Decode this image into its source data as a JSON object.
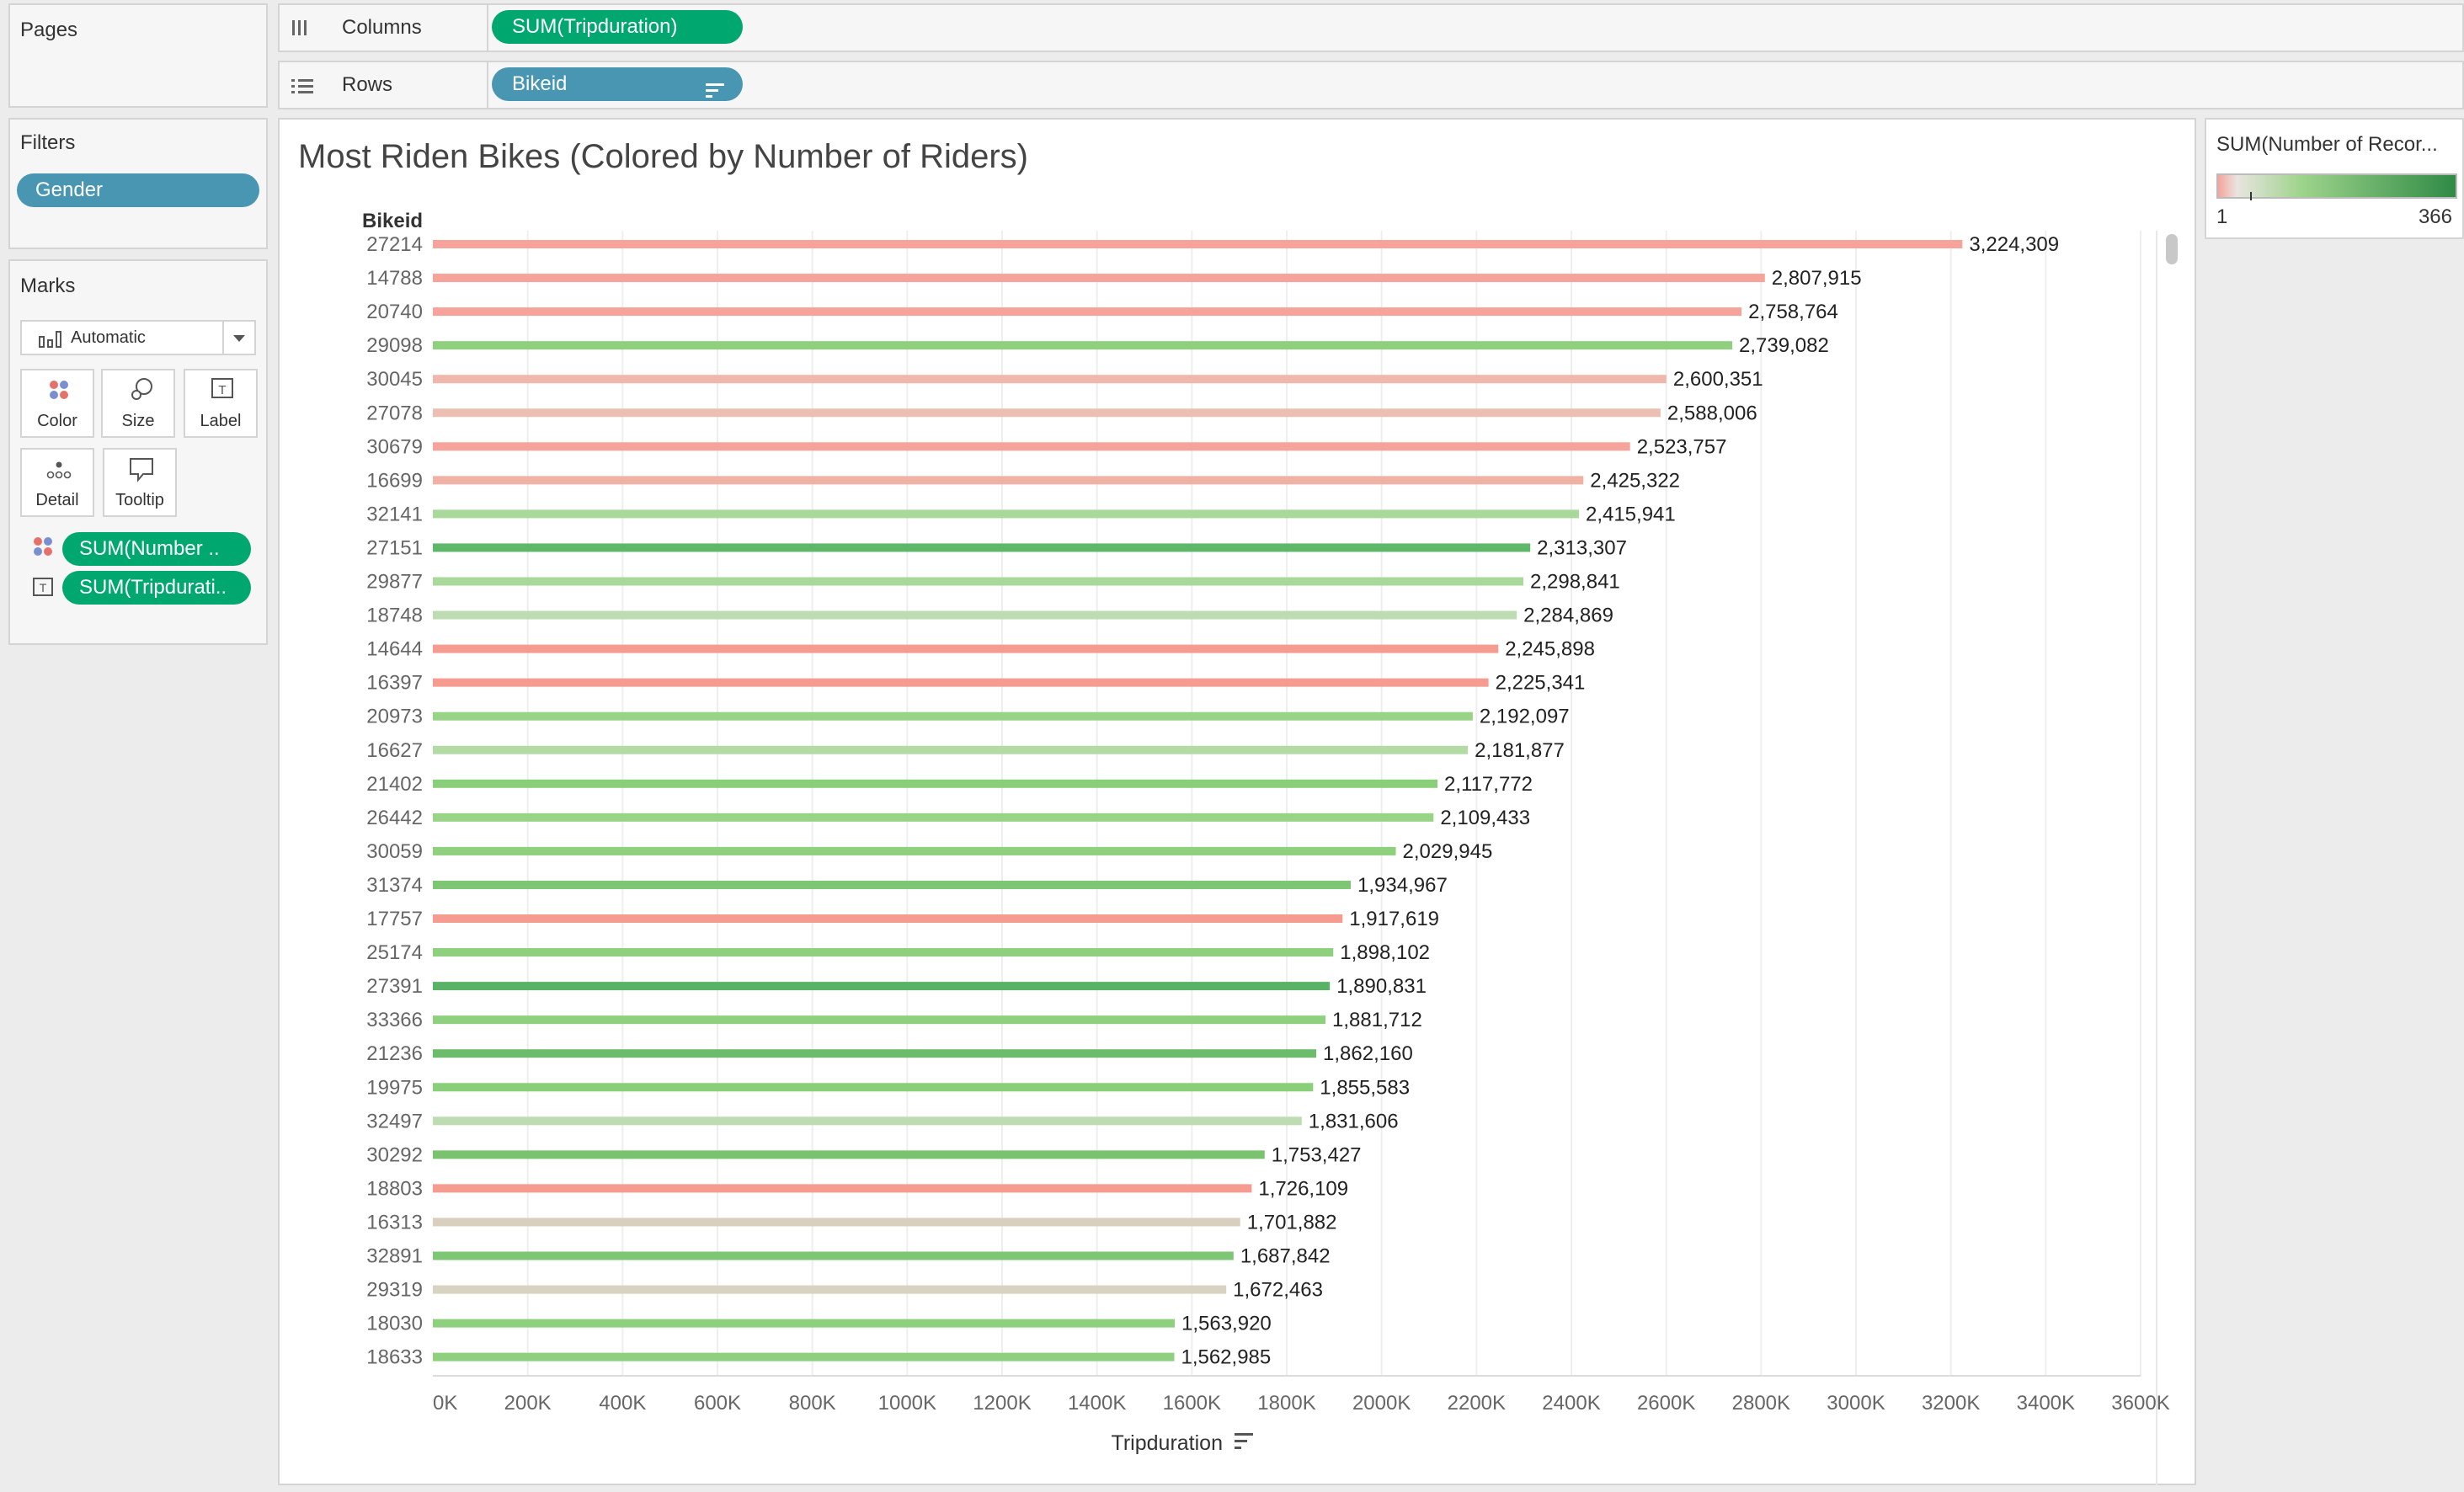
{
  "pages": {
    "title": "Pages"
  },
  "shelves": {
    "columns": {
      "label": "Columns",
      "pill": "SUM(Tripduration)"
    },
    "rows": {
      "label": "Rows",
      "pill": "Bikeid"
    }
  },
  "filters": {
    "title": "Filters",
    "pill": "Gender"
  },
  "marks": {
    "title": "Marks",
    "type_selected": "Automatic",
    "buttons": {
      "color": "Color",
      "size": "Size",
      "label": "Label",
      "detail": "Detail",
      "tooltip": "Tooltip"
    },
    "fields": [
      "SUM(Number ..",
      "SUM(Tripdurati.."
    ]
  },
  "legend": {
    "title": "SUM(Number of Recor...",
    "min": "1",
    "max": "366",
    "colors": [
      "#f6a49b",
      "#e9e4e0",
      "#9ed48c",
      "#2f8a45"
    ]
  },
  "view": {
    "title": "Most Riden Bikes (Colored by Number of Riders)"
  },
  "chart_data": {
    "type": "bar",
    "orientation": "horizontal",
    "title": "Most Riden Bikes (Colored by Number of Riders)",
    "row_header": "Bikeid",
    "xlabel": "Tripduration",
    "xlim": [
      0,
      3600000
    ],
    "x_ticks": [
      "0K",
      "200K",
      "400K",
      "600K",
      "800K",
      "1000K",
      "1200K",
      "1400K",
      "1600K",
      "1800K",
      "2000K",
      "2200K",
      "2400K",
      "2600K",
      "2800K",
      "3000K",
      "3200K",
      "3400K",
      "3600K"
    ],
    "grid": "vertical",
    "categories": [
      "27214",
      "14788",
      "20740",
      "29098",
      "30045",
      "27078",
      "30679",
      "16699",
      "32141",
      "27151",
      "29877",
      "18748",
      "14644",
      "16397",
      "20973",
      "16627",
      "21402",
      "26442",
      "30059",
      "31374",
      "17757",
      "25174",
      "27391",
      "33366",
      "21236",
      "19975",
      "32497",
      "30292",
      "18803",
      "16313",
      "32891",
      "29319",
      "18030",
      "18633"
    ],
    "values": [
      3224309,
      2807915,
      2758764,
      2739082,
      2600351,
      2588006,
      2523757,
      2425322,
      2415941,
      2313307,
      2298841,
      2284869,
      2245898,
      2225341,
      2192097,
      2181877,
      2117772,
      2109433,
      2029945,
      1934967,
      1917619,
      1898102,
      1890831,
      1881712,
      1862160,
      1855583,
      1831606,
      1753427,
      1726109,
      1701882,
      1687842,
      1672463,
      1563920,
      1562985
    ],
    "labels": [
      "3,224,309",
      "2,807,915",
      "2,758,764",
      "2,739,082",
      "2,600,351",
      "2,588,006",
      "2,523,757",
      "2,425,322",
      "2,415,941",
      "2,313,307",
      "2,298,841",
      "2,284,869",
      "2,245,898",
      "2,225,341",
      "2,192,097",
      "2,181,877",
      "2,117,772",
      "2,109,433",
      "2,029,945",
      "1,934,967",
      "1,917,619",
      "1,898,102",
      "1,890,831",
      "1,881,712",
      "1,862,160",
      "1,855,583",
      "1,831,606",
      "1,753,427",
      "1,726,109",
      "1,701,882",
      "1,687,842",
      "1,672,463",
      "1,563,920",
      "1,562,985"
    ],
    "bar_colors": [
      "#f6a49b",
      "#f6a49b",
      "#f6a49b",
      "#8fd07f",
      "#f0b8ad",
      "#ebc0b3",
      "#f6a49b",
      "#f1b2a6",
      "#a9d99a",
      "#5fb86a",
      "#a9d99a",
      "#bedcb1",
      "#f59b8f",
      "#f59b8f",
      "#97d486",
      "#b4dba6",
      "#89cf7a",
      "#97d486",
      "#8fd07f",
      "#7dc673",
      "#f59b8f",
      "#8fd07f",
      "#59b366",
      "#8fd07f",
      "#6cbc6c",
      "#89cf7a",
      "#bedcb1",
      "#79c26e",
      "#f59b8f",
      "#d8cfbe",
      "#7dc673",
      "#d8d2c2",
      "#8fd07f",
      "#8fd07f"
    ]
  }
}
